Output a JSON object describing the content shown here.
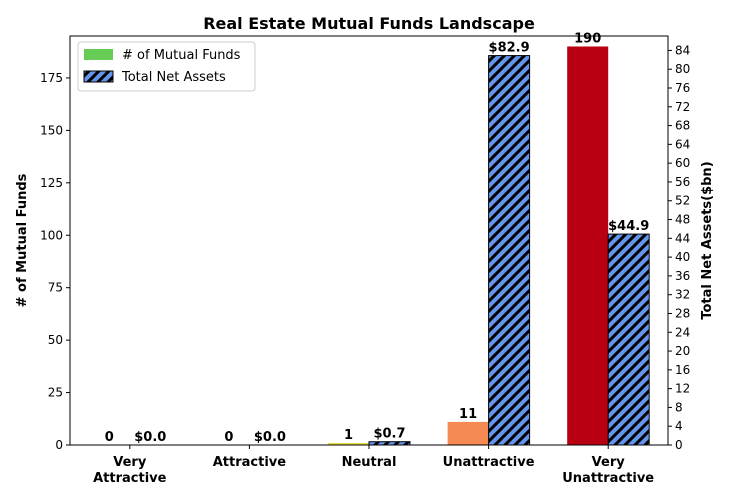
{
  "chart_data": {
    "type": "bar",
    "title": "Real Estate Mutual Funds Landscape",
    "categories": [
      [
        "Very",
        "Attractive"
      ],
      [
        "Attractive"
      ],
      [
        "Neutral"
      ],
      [
        "Unattractive"
      ],
      [
        "Very",
        "Unattractive"
      ]
    ],
    "series": [
      {
        "name": "# of Mutual Funds",
        "axis": "left",
        "values": [
          0,
          0,
          1,
          11,
          190
        ],
        "labels": [
          "0",
          "0",
          "1",
          "11",
          "190"
        ],
        "colors": [
          "#3db34a",
          "#3db34a",
          "#e5e04a",
          "#f68a53",
          "#b90012"
        ],
        "legend_color": "#66cc55"
      },
      {
        "name": "Total Net Assets",
        "axis": "right",
        "values": [
          0.0,
          0.0,
          0.7,
          82.9,
          44.9
        ],
        "labels": [
          "$0.0",
          "$0.0",
          "$0.7",
          "$82.9",
          "$44.9"
        ],
        "color": "#6495ed",
        "hatch": true
      }
    ],
    "ylabel": "# of Mutual Funds",
    "ylim": [
      0,
      195
    ],
    "yticks": [
      0,
      25,
      50,
      75,
      100,
      125,
      150,
      175
    ],
    "y2label": "Total Net Assets($bn)",
    "y2lim": [
      0,
      87.07
    ],
    "y2ticks": [
      0,
      4,
      8,
      12,
      16,
      20,
      24,
      28,
      32,
      36,
      40,
      44,
      48,
      52,
      56,
      60,
      64,
      68,
      72,
      76,
      80,
      84
    ],
    "legend_position": "top-left",
    "grid": false
  }
}
